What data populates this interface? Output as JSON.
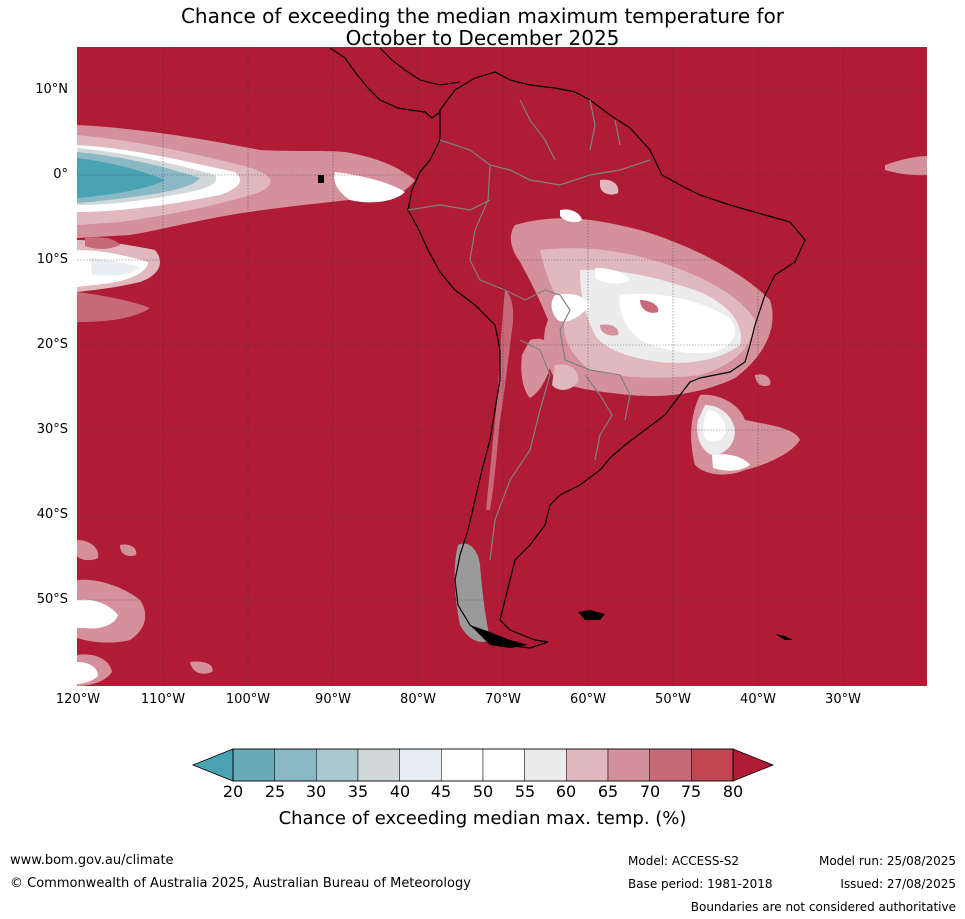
{
  "title_line1": "Chance of exceeding the median maximum temperature for",
  "title_line2": "October to December 2025",
  "map": {
    "lat_labels": [
      "10°N",
      "0°",
      "10°S",
      "20°S",
      "30°S",
      "40°S",
      "50°S"
    ],
    "lat_values": [
      10,
      0,
      -10,
      -20,
      -30,
      -40,
      -50
    ],
    "lon_labels": [
      "120°W",
      "110°W",
      "100°W",
      "90°W",
      "80°W",
      "70°W",
      "60°W",
      "50°W",
      "40°W",
      "30°W"
    ],
    "lon_values": [
      -120,
      -110,
      -100,
      -90,
      -80,
      -70,
      -60,
      -50,
      -40,
      -30
    ],
    "extent": {
      "lon_min": -120,
      "lon_max": -20,
      "lat_min": -60,
      "lat_max": 15
    },
    "background_category": ">80%",
    "colors": {
      "c80plus": "#b01c35",
      "c75": "#c24652",
      "c70": "#c8697a",
      "c65": "#d4919b",
      "c60": "#e0b8be",
      "c55": "#ececec",
      "c50": "#ffffff",
      "c45": "#ffffff",
      "c40": "#e8eef1",
      "c35": "#d0d8da",
      "c30": "#a9c7ce",
      "c25": "#8ab8c5",
      "c20": "#6aabb9",
      "below20": "#4aa3b3",
      "coast": "#000000",
      "border": "#808080",
      "grid": "#333333"
    }
  },
  "colorbar": {
    "ticks": [
      "20",
      "25",
      "30",
      "35",
      "40",
      "45",
      "50",
      "55",
      "60",
      "65",
      "70",
      "75",
      "80"
    ],
    "colors": [
      "#6aabb9",
      "#8ab8c5",
      "#a9c7ce",
      "#d0d8da",
      "#e8eef1",
      "#ffffff",
      "#ffffff",
      "#ececec",
      "#e0b8be",
      "#d4919b",
      "#c8697a",
      "#c24652"
    ],
    "low_color": "#4aa3b3",
    "high_color": "#b01c35",
    "label": "Chance of exceeding median max. temp. (%)"
  },
  "footer": {
    "website": "www.bom.gov.au/climate",
    "copyright": "© Commonwealth of Australia 2025, Australian Bureau of Meteorology",
    "model": "Model: ACCESS-S2",
    "base_period": "Base period: 1981-2018",
    "model_run": "Model run: 25/08/2025",
    "issued": "Issued: 27/08/2025",
    "disclaimer": "Boundaries are not considered authoritative"
  }
}
